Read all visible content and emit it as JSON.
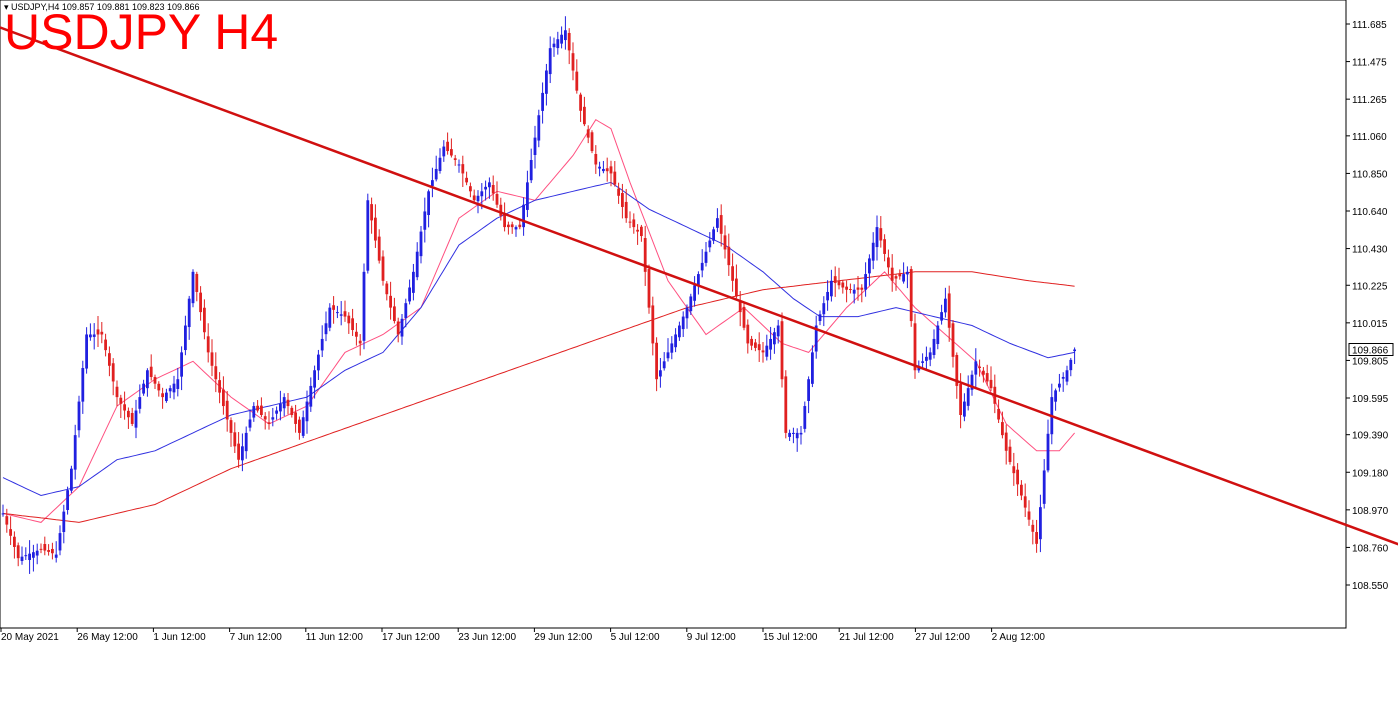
{
  "header": {
    "info": "USDJPY,H4  109.857 109.881 109.823 109.866",
    "title": "USDJPY H4"
  },
  "colors": {
    "bull": "#2020e0",
    "bear": "#e02020",
    "ma_fast": "#ff5080",
    "ma_mid": "#3030e0",
    "ma_slow": "#e02020",
    "trendline": "#d01010",
    "price_box": "#000000"
  },
  "chart_data": {
    "type": "candlestick",
    "symbol": "USDJPY",
    "timeframe": "H4",
    "ylim": [
      108.45,
      111.77
    ],
    "y_ticks": [
      "111.685",
      "111.475",
      "111.265",
      "111.060",
      "110.850",
      "110.640",
      "110.430",
      "110.225",
      "110.015",
      "109.805",
      "109.595",
      "109.390",
      "109.180",
      "108.970",
      "108.760",
      "108.550"
    ],
    "x_ticks": [
      "20 May 2021",
      "26 May 12:00",
      "1 Jun 12:00",
      "7 Jun 12:00",
      "11 Jun 12:00",
      "17 Jun 12:00",
      "23 Jun 12:00",
      "29 Jun 12:00",
      "5 Jul 12:00",
      "9 Jul 12:00",
      "15 Jul 12:00",
      "21 Jul 12:00",
      "27 Jul 12:00",
      "2 Aug 12:00"
    ],
    "current_price": "109.866",
    "last_ohlc": {
      "open": 109.857,
      "high": 109.881,
      "low": 109.823,
      "close": 109.866
    },
    "price_path_keypoints": [
      [
        0,
        108.95
      ],
      [
        4,
        108.7
      ],
      [
        10,
        108.75
      ],
      [
        14,
        108.72
      ],
      [
        18,
        109.2
      ],
      [
        22,
        109.95
      ],
      [
        26,
        109.95
      ],
      [
        30,
        109.6
      ],
      [
        34,
        109.45
      ],
      [
        38,
        109.75
      ],
      [
        42,
        109.6
      ],
      [
        46,
        109.7
      ],
      [
        50,
        110.3
      ],
      [
        54,
        109.85
      ],
      [
        58,
        109.55
      ],
      [
        62,
        109.25
      ],
      [
        66,
        109.55
      ],
      [
        70,
        109.45
      ],
      [
        74,
        109.6
      ],
      [
        78,
        109.4
      ],
      [
        82,
        109.75
      ],
      [
        86,
        110.1
      ],
      [
        90,
        110.05
      ],
      [
        94,
        109.9
      ],
      [
        96,
        110.7
      ],
      [
        100,
        110.25
      ],
      [
        104,
        109.95
      ],
      [
        108,
        110.3
      ],
      [
        112,
        110.75
      ],
      [
        116,
        111.0
      ],
      [
        120,
        110.9
      ],
      [
        124,
        110.7
      ],
      [
        128,
        110.8
      ],
      [
        132,
        110.55
      ],
      [
        136,
        110.55
      ],
      [
        140,
        111.05
      ],
      [
        144,
        111.55
      ],
      [
        148,
        111.65
      ],
      [
        152,
        111.2
      ],
      [
        156,
        110.9
      ],
      [
        160,
        110.85
      ],
      [
        164,
        110.6
      ],
      [
        168,
        110.5
      ],
      [
        172,
        109.7
      ],
      [
        176,
        109.9
      ],
      [
        180,
        110.1
      ],
      [
        184,
        110.35
      ],
      [
        188,
        110.6
      ],
      [
        192,
        110.25
      ],
      [
        196,
        109.9
      ],
      [
        200,
        109.85
      ],
      [
        204,
        110.0
      ],
      [
        206,
        109.4
      ],
      [
        210,
        109.4
      ],
      [
        214,
        110.0
      ],
      [
        218,
        110.25
      ],
      [
        222,
        110.2
      ],
      [
        226,
        110.2
      ],
      [
        230,
        110.55
      ],
      [
        234,
        110.25
      ],
      [
        238,
        110.3
      ],
      [
        240,
        109.75
      ],
      [
        244,
        109.85
      ],
      [
        248,
        110.15
      ],
      [
        252,
        109.5
      ],
      [
        256,
        109.8
      ],
      [
        260,
        109.65
      ],
      [
        264,
        109.3
      ],
      [
        268,
        109.05
      ],
      [
        272,
        108.78
      ],
      [
        276,
        109.6
      ],
      [
        280,
        109.75
      ],
      [
        282,
        109.866
      ]
    ],
    "moving_averages": [
      {
        "keypoints": [
          [
            0,
            108.95
          ],
          [
            10,
            108.9
          ],
          [
            20,
            109.1
          ],
          [
            30,
            109.55
          ],
          [
            40,
            109.7
          ],
          [
            50,
            109.8
          ],
          [
            60,
            109.6
          ],
          [
            70,
            109.45
          ],
          [
            80,
            109.55
          ],
          [
            90,
            109.85
          ],
          [
            100,
            109.95
          ],
          [
            110,
            110.1
          ],
          [
            120,
            110.6
          ],
          [
            130,
            110.75
          ],
          [
            140,
            110.7
          ],
          [
            150,
            110.95
          ],
          [
            156,
            111.15
          ],
          [
            160,
            111.1
          ],
          [
            165,
            110.8
          ],
          [
            175,
            110.25
          ],
          [
            185,
            109.95
          ],
          [
            195,
            110.1
          ],
          [
            205,
            109.9
          ],
          [
            212,
            109.85
          ],
          [
            222,
            110.1
          ],
          [
            232,
            110.3
          ],
          [
            240,
            110.1
          ],
          [
            248,
            109.95
          ],
          [
            256,
            109.8
          ],
          [
            264,
            109.45
          ],
          [
            272,
            109.3
          ],
          [
            278,
            109.3
          ],
          [
            282,
            109.4
          ]
        ]
      },
      {
        "keypoints": [
          [
            0,
            109.15
          ],
          [
            10,
            109.05
          ],
          [
            20,
            109.1
          ],
          [
            30,
            109.25
          ],
          [
            40,
            109.3
          ],
          [
            50,
            109.4
          ],
          [
            60,
            109.5
          ],
          [
            70,
            109.55
          ],
          [
            80,
            109.6
          ],
          [
            90,
            109.75
          ],
          [
            100,
            109.85
          ],
          [
            110,
            110.1
          ],
          [
            120,
            110.45
          ],
          [
            130,
            110.6
          ],
          [
            140,
            110.7
          ],
          [
            150,
            110.75
          ],
          [
            160,
            110.8
          ],
          [
            170,
            110.65
          ],
          [
            180,
            110.55
          ],
          [
            190,
            110.45
          ],
          [
            200,
            110.3
          ],
          [
            208,
            110.15
          ],
          [
            215,
            110.05
          ],
          [
            225,
            110.05
          ],
          [
            235,
            110.1
          ],
          [
            245,
            110.05
          ],
          [
            255,
            110.0
          ],
          [
            265,
            109.9
          ],
          [
            275,
            109.82
          ],
          [
            282,
            109.85
          ]
        ]
      },
      {
        "keypoints": [
          [
            0,
            108.95
          ],
          [
            20,
            108.9
          ],
          [
            40,
            109.0
          ],
          [
            60,
            109.2
          ],
          [
            80,
            109.35
          ],
          [
            100,
            109.5
          ],
          [
            120,
            109.65
          ],
          [
            140,
            109.8
          ],
          [
            160,
            109.95
          ],
          [
            180,
            110.1
          ],
          [
            200,
            110.2
          ],
          [
            220,
            110.25
          ],
          [
            240,
            110.3
          ],
          [
            255,
            110.3
          ],
          [
            270,
            110.25
          ],
          [
            282,
            110.22
          ]
        ]
      }
    ],
    "trendline": {
      "start": [
        -37,
        111.95
      ],
      "end": [
        372,
        108.74
      ]
    }
  }
}
